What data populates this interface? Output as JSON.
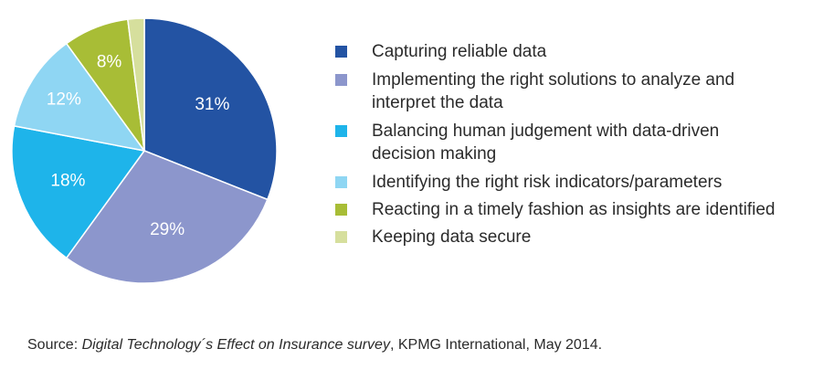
{
  "chart_data": {
    "type": "pie",
    "slices": [
      {
        "label": "Capturing reliable data",
        "value": 31,
        "display": "31%",
        "color": "#2353a3"
      },
      {
        "label": "Implementing the right solutions to analyze and interpret the data",
        "value": 29,
        "display": "29%",
        "color": "#8c96cc"
      },
      {
        "label": "Balancing human judgement with data-driven decision making",
        "value": 18,
        "display": "18%",
        "color": "#1eb4ea"
      },
      {
        "label": "Identifying the right risk indicators/parameters",
        "value": 12,
        "display": "12%",
        "color": "#8fd6f3"
      },
      {
        "label": "Reacting in a timely fashion as insights are identified",
        "value": 8,
        "display": "8%",
        "color": "#a8bd36"
      },
      {
        "label": "Keeping data secure",
        "value": 2,
        "display": "",
        "color": "#d6df9d"
      }
    ],
    "legend_placement": "right"
  },
  "legend": [
    {
      "line1": "Capturing reliable data",
      "line2": ""
    },
    {
      "line1": "Implementing the right solutions to analyze and",
      "line2": "interpret the data"
    },
    {
      "line1": "Balancing human judgement with data-driven",
      "line2": "decision making"
    },
    {
      "line1": "Identifying the right risk indicators/parameters",
      "line2": ""
    },
    {
      "line1": "Reacting in a timely fashion as insights are identified",
      "line2": ""
    },
    {
      "line1": "Keeping data secure",
      "line2": ""
    }
  ],
  "source": {
    "prefix": "Source: ",
    "title": "Digital Technology´s Effect on Insurance survey",
    "suffix": ", KPMG International, May 2014."
  }
}
